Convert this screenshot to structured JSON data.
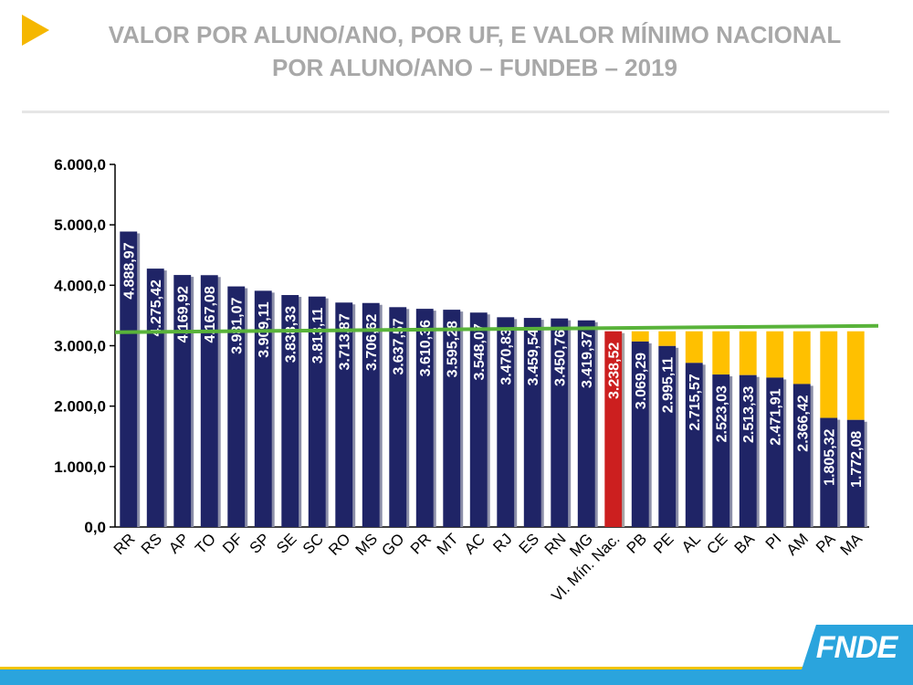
{
  "header": {
    "title_line1": "VALOR POR ALUNO/ANO, POR UF, E VALOR MÍNIMO NACIONAL",
    "title_line2": "POR ALUNO/ANO – FUNDEB – 2019"
  },
  "logo": {
    "text": "FNDE"
  },
  "colors": {
    "bar": "#1f2466",
    "highlight": "#cc1f1f",
    "complement": "#ffc000",
    "reference_line": "#59b33a",
    "accent_arrow": "#f5b700",
    "footer_blue": "#2aa4dd",
    "footer_yellow": "#f5c400"
  },
  "chart_data": {
    "type": "bar",
    "categories": [
      "RR",
      "RS",
      "AP",
      "TO",
      "DF",
      "SP",
      "SE",
      "SC",
      "RO",
      "MS",
      "GO",
      "PR",
      "MT",
      "AC",
      "RJ",
      "ES",
      "RN",
      "MG",
      "Vl. Mín. Nac.",
      "PB",
      "PE",
      "AL",
      "CE",
      "BA",
      "PI",
      "AM",
      "PA",
      "MA"
    ],
    "values": [
      4888.97,
      4275.42,
      4169.92,
      4167.08,
      3981.07,
      3909.11,
      3838.33,
      3813.11,
      3713.87,
      3706.62,
      3637.57,
      3610.36,
      3595.28,
      3548.07,
      3470.83,
      3459.54,
      3450.76,
      3419.37,
      3238.52,
      3069.29,
      2995.11,
      2715.57,
      2523.03,
      2513.33,
      2471.91,
      2366.42,
      1805.32,
      1772.08
    ],
    "value_labels": [
      "4.888,97",
      "4.275,42",
      "4.169,92",
      "4.167,08",
      "3.981,07",
      "3.909,11",
      "3.838,33",
      "3.813,11",
      "3.713,87",
      "3.706,62",
      "3.637,57",
      "3.610,36",
      "3.595,28",
      "3.548,07",
      "3.470,83",
      "3.459,54",
      "3.450,76",
      "3.419,37",
      "3.238,52",
      "3.069,29",
      "2.995,11",
      "2.715,57",
      "2.523,03",
      "2.513,33",
      "2.471,91",
      "2.366,42",
      "1.805,32",
      "1.772,08"
    ],
    "highlight_category": "Vl. Mín. Nac.",
    "reference_value": 3238.52,
    "ylim": [
      0,
      6000
    ],
    "yticks": [
      0,
      1000,
      2000,
      3000,
      4000,
      5000,
      6000
    ],
    "ytick_labels": [
      "0,0",
      "1.000,0",
      "2.000,0",
      "3.000,0",
      "4.000,0",
      "5.000,0",
      "6.000,0"
    ],
    "grid": false,
    "legend": "none"
  }
}
